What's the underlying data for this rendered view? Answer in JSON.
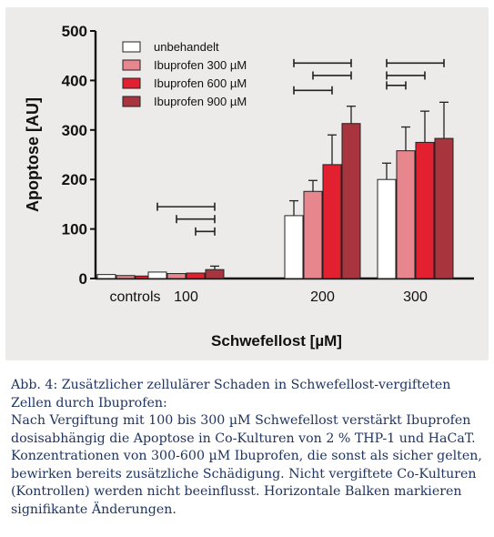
{
  "chart_data": {
    "type": "bar",
    "categories": [
      "controls",
      "100",
      "200",
      "300"
    ],
    "series": [
      {
        "name": "unbehandelt",
        "color": "#ffffff",
        "values": [
          8,
          13,
          127,
          200
        ],
        "errors": [
          0,
          0,
          30,
          33
        ]
      },
      {
        "name": "Ibuprofen 300 µM",
        "color": "#e8868e",
        "values": [
          6,
          10,
          176,
          258
        ],
        "errors": [
          0,
          0,
          22,
          48
        ]
      },
      {
        "name": "Ibuprofen 600 µM",
        "color": "#e3202f",
        "values": [
          5,
          11,
          230,
          275
        ],
        "errors": [
          0,
          0,
          60,
          63
        ]
      },
      {
        "name": "Ibuprofen 900 µM",
        "color": "#a8343d",
        "values": [
          6,
          18,
          313,
          283
        ],
        "errors": [
          0,
          7,
          35,
          73
        ]
      }
    ],
    "xlabel": "Schwefellost [µM]",
    "ylabel": "Apoptose [AU]",
    "ylim": [
      0,
      500
    ],
    "yticks": [
      0,
      100,
      200,
      300,
      400,
      500
    ],
    "legend_position": "top-left",
    "significance_bars": [
      {
        "category": "100",
        "from_series": 0,
        "to_series": 3,
        "y": 145
      },
      {
        "category": "100",
        "from_series": 1,
        "to_series": 3,
        "y": 120
      },
      {
        "category": "100",
        "from_series": 2,
        "to_series": 3,
        "y": 95
      },
      {
        "category": "200",
        "from_series": 0,
        "to_series": 3,
        "y": 435
      },
      {
        "category": "200",
        "from_series": 0,
        "to_series": 2,
        "y": 380
      },
      {
        "category": "200",
        "from_series": 1,
        "to_series": 3,
        "y": 410
      },
      {
        "category": "300",
        "from_series": 0,
        "to_series": 3,
        "y": 435
      },
      {
        "category": "300",
        "from_series": 0,
        "to_series": 2,
        "y": 410
      },
      {
        "category": "300",
        "from_series": 0,
        "to_series": 1,
        "y": 390
      }
    ]
  },
  "caption": {
    "title": "Abb. 4: Zusätzlicher zellulärer Schaden in Schwefellost-vergifteten Zellen durch Ibuprofen:",
    "body": "Nach Vergiftung mit 100 bis 300 µM Schwefellost verstärkt Ibuprofen dosisabhängig die Apoptose in Co-Kulturen von 2 % THP-1 und HaCaT. Konzentrationen von 300-600 µM Ibuprofen, die sonst als sicher gelten, bewirken bereits zusätzliche Schädigung. Nicht vergiftete Co-Kulturen (Kontrollen) werden nicht beeinflusst. Horizontale Balken markieren signifikante Änderungen."
  }
}
